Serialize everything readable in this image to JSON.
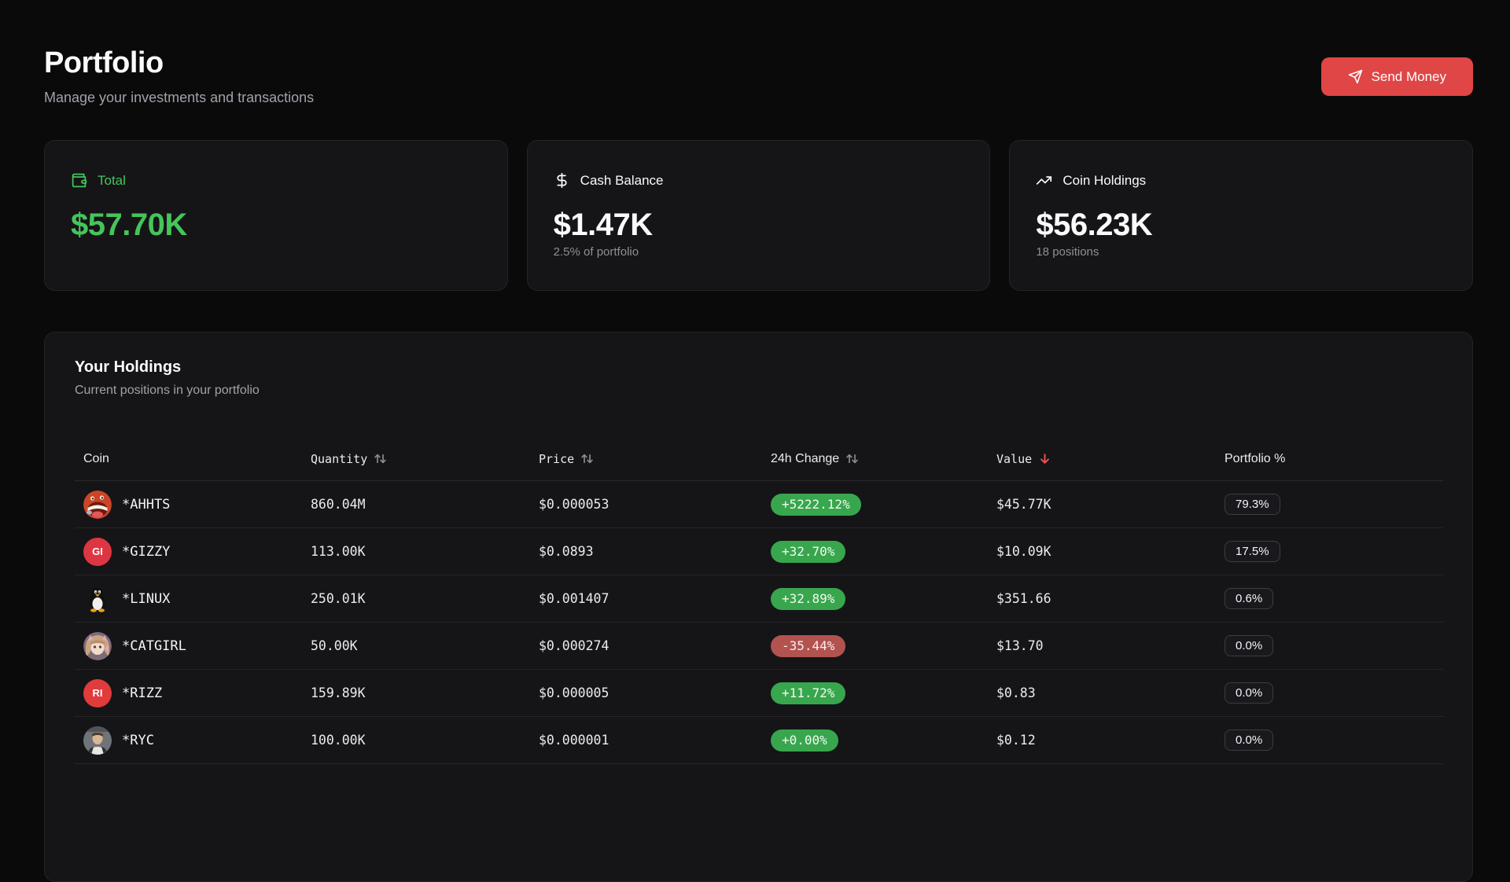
{
  "header": {
    "title": "Portfolio",
    "subtitle": "Manage your investments and transactions",
    "send_button": {
      "label": "Send Money",
      "icon": "send-icon",
      "color": "#e04646"
    }
  },
  "stats": [
    {
      "icon": "wallet-icon",
      "label": "Total",
      "value": "$57.70K",
      "sub": "",
      "accent": "#45c55a"
    },
    {
      "icon": "dollar-icon",
      "label": "Cash Balance",
      "value": "$1.47K",
      "sub": "2.5% of portfolio"
    },
    {
      "icon": "trending-up-icon",
      "label": "Coin Holdings",
      "value": "$56.23K",
      "sub": "18 positions"
    }
  ],
  "holdings": {
    "title": "Your Holdings",
    "subtitle": "Current positions in your portfolio",
    "columns": [
      {
        "label": "Coin",
        "sort": "none"
      },
      {
        "label": "Quantity",
        "sort": "both"
      },
      {
        "label": "Price",
        "sort": "both"
      },
      {
        "label": "24h Change",
        "sort": "both"
      },
      {
        "label": "Value",
        "sort": "desc"
      },
      {
        "label": "Portfolio %",
        "sort": "none"
      }
    ],
    "rows": [
      {
        "avatar": "ahhts-avatar",
        "symbol": "*AHHTS",
        "quantity": "860.04M",
        "price": "$0.000053",
        "change": "+5222.12%",
        "change_dir": "up",
        "value": "$45.77K",
        "portfolio_pct": "79.3%"
      },
      {
        "avatar": "gizzy-avatar",
        "avatar_text": "GI",
        "avatar_color": "#dd3643",
        "symbol": "*GIZZY",
        "quantity": "113.00K",
        "price": "$0.0893",
        "change": "+32.70%",
        "change_dir": "up",
        "value": "$10.09K",
        "portfolio_pct": "17.5%"
      },
      {
        "avatar": "linux-avatar",
        "symbol": "*LINUX",
        "quantity": "250.01K",
        "price": "$0.001407",
        "change": "+32.89%",
        "change_dir": "up",
        "value": "$351.66",
        "portfolio_pct": "0.6%"
      },
      {
        "avatar": "catgirl-avatar",
        "symbol": "*CATGIRL",
        "quantity": "50.00K",
        "price": "$0.000274",
        "change": "-35.44%",
        "change_dir": "down",
        "value": "$13.70",
        "portfolio_pct": "0.0%"
      },
      {
        "avatar": "rizz-avatar",
        "avatar_text": "RI",
        "avatar_color": "#e13b3b",
        "symbol": "*RIZZ",
        "quantity": "159.89K",
        "price": "$0.000005",
        "change": "+11.72%",
        "change_dir": "up",
        "value": "$0.83",
        "portfolio_pct": "0.0%"
      },
      {
        "avatar": "ryc-avatar",
        "symbol": "*RYC",
        "quantity": "100.00K",
        "price": "$0.000001",
        "change": "+0.00%",
        "change_dir": "up",
        "value": "$0.12",
        "portfolio_pct": "0.0%"
      }
    ]
  }
}
